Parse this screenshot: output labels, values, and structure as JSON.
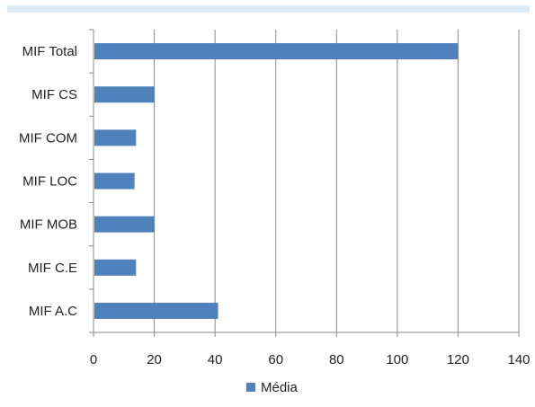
{
  "chart_data": {
    "type": "bar",
    "orientation": "horizontal",
    "categories": [
      "MIF Total",
      "MIF CS",
      "MIF COM",
      "MIF LOC",
      "MIF MOB",
      "MIF C.E",
      "MIF A.C"
    ],
    "series": [
      {
        "name": "Média",
        "color": "#4f81bd",
        "values": [
          120,
          20,
          14,
          13.5,
          20,
          14,
          41
        ]
      }
    ],
    "xlim": [
      0,
      140
    ],
    "xticks": [
      0,
      20,
      40,
      60,
      80,
      100,
      120,
      140
    ],
    "grid": true,
    "legend": "bottom"
  }
}
